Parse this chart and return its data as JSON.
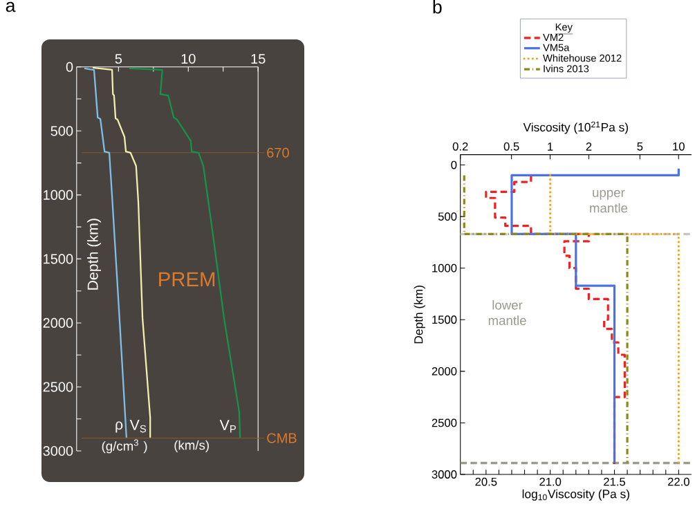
{
  "chart_data": [
    {
      "type": "line",
      "title": "a",
      "ylabel": "Depth (km)",
      "xlim": [
        2,
        15
      ],
      "xticks": [
        5,
        {
          "value": 7.5,
          "label": null
        },
        10,
        {
          "value": 12.5,
          "label": null
        },
        15
      ],
      "ylim": [
        3000,
        0
      ],
      "yticks": [
        0,
        {
          "value": 250,
          "label": null
        },
        500,
        {
          "value": 750,
          "label": null
        },
        1000,
        {
          "value": 1250,
          "label": null
        },
        1500,
        {
          "value": 1750,
          "label": null
        },
        2000,
        {
          "value": 2250,
          "label": null
        },
        2500,
        {
          "value": 2750,
          "label": null
        },
        3000
      ],
      "series": [
        {
          "name": "ρ",
          "color": "#7fc0ea",
          "x": [
            2.55,
            3.25,
            3.51,
            3.7,
            4.0,
            4.34,
            4.54,
            5.09,
            5.57
          ],
          "values": [
            11,
            24,
            395,
            406,
            661,
            670,
            1011,
            2000,
            2896
          ]
        },
        {
          "name": "V$_{S}$",
          "color": "#f3efae",
          "x": [
            3.15,
            4.54,
            4.6,
            4.68,
            4.79,
            4.93,
            5.43,
            5.53,
            5.86,
            6.26,
            6.42,
            6.72,
            7.27,
            7.27
          ],
          "values": [
            6,
            22,
            212,
            223,
            402,
            411,
            547,
            661,
            670,
            774,
            1055,
            1962,
            2740,
            2896
          ]
        },
        {
          "name": "V$_{P}$",
          "color": "#15934a",
          "x": [
            5.77,
            8.14,
            8.0,
            8.56,
            8.96,
            9.19,
            10.18,
            10.24,
            10.74,
            11.08,
            11.77,
            12.56,
            13.65,
            13.71
          ],
          "values": [
            11,
            24,
            212,
            223,
            395,
            411,
            579,
            661,
            670,
            774,
            1314,
            1962,
            2697,
            2896
          ]
        }
      ],
      "ref_lines": [
        {
          "axis": "y",
          "value": 670,
          "label": "670",
          "color": "#8b5a2b"
        },
        {
          "axis": "y",
          "value": 2900,
          "label": "CMB",
          "color": "#8b5a2b"
        }
      ],
      "annotations": [
        "PREM",
        "(g/cm$^{3}$ )",
        "(km/s)"
      ]
    },
    {
      "type": "line",
      "title": "b",
      "xlabel": "log$_{10}$Viscosity (Pa s)",
      "ylabel": "Depth (km)",
      "x2label": "Viscosity (10$^{21}$Pa s)",
      "legend_title": "Key",
      "legend": "top",
      "log": "x2",
      "xlim": [
        20.3,
        22.1
      ],
      "xticks": [
        {
          "value": 20.4,
          "label": null
        },
        20.5,
        {
          "value": 20.6,
          "label": null
        },
        {
          "value": 20.7,
          "label": null
        },
        {
          "value": 20.8,
          "label": null
        },
        {
          "value": 20.9,
          "label": null
        },
        {
          "value": 21,
          "label": "21.0"
        },
        {
          "value": 21.1,
          "label": null
        },
        {
          "value": 21.2,
          "label": null
        },
        {
          "value": 21.3,
          "label": null
        },
        {
          "value": 21.4,
          "label": null
        },
        21.5,
        {
          "value": 21.6,
          "label": null
        },
        {
          "value": 21.7,
          "label": null
        },
        {
          "value": 21.8,
          "label": null
        },
        {
          "value": 21.9,
          "label": null
        },
        {
          "value": 22,
          "label": "22.0"
        }
      ],
      "x2lim": [
        0.2,
        12.6
      ],
      "x2ticks": [
        0.2,
        0.5,
        1,
        2,
        5,
        10
      ],
      "ylim": [
        3000,
        -100
      ],
      "yticks": [
        0,
        500,
        1000,
        1500,
        2000,
        2500,
        3000
      ],
      "series": [
        {
          "name": "VM2",
          "color": "#ee2222",
          "line_style": "dashed",
          "x": [
            20.85,
            20.85,
            20.72,
            20.72,
            20.5,
            20.5,
            20.57,
            20.57,
            20.65,
            20.65,
            20.85,
            20.85,
            21.3,
            21.3,
            21.11,
            21.11,
            21.15,
            21.15,
            21.2,
            21.2,
            21.3,
            21.3,
            21.45,
            21.45,
            21.42,
            21.42,
            21.48,
            21.48,
            21.53,
            21.53,
            21.58,
            21.58,
            21.5,
            21.5
          ],
          "values": [
            100,
            165,
            165,
            260,
            260,
            320,
            320,
            510,
            510,
            590,
            590,
            670,
            670,
            740,
            740,
            880,
            880,
            1000,
            1000,
            1200,
            1200,
            1300,
            1300,
            1500,
            1500,
            1590,
            1590,
            1720,
            1720,
            1840,
            1840,
            2250,
            2250,
            2900
          ]
        },
        {
          "name": "VM5a",
          "color": "#4a72e8",
          "line_style": "solid",
          "x": [
            22.0,
            22.0,
            20.7,
            20.7,
            21.2,
            21.2,
            21.5,
            21.5
          ],
          "values": [
            35,
            100,
            100,
            670,
            670,
            1170,
            1170,
            2890
          ]
        },
        {
          "name": "Whitehouse 2012",
          "color": "#f5a012",
          "line_style": "dotted",
          "x": [
            21.0,
            21.0,
            22.0,
            22.0
          ],
          "values": [
            100,
            670,
            670,
            2890
          ]
        },
        {
          "name": "Ivins 2013",
          "color": "#8a8a1a",
          "line_style": "dashdot",
          "x": [
            20.33,
            20.33,
            21.6,
            21.6
          ],
          "values": [
            100,
            670,
            670,
            2890
          ]
        }
      ],
      "ref_lines": [
        {
          "axis": "y",
          "value": 670,
          "color": "#c8c8c0",
          "line_style": "dashed"
        },
        {
          "axis": "y",
          "value": 2890,
          "color": "#9a9a90",
          "line_style": "dashed"
        }
      ],
      "annotations": [
        "upper mantle",
        "lower mantle"
      ]
    }
  ]
}
